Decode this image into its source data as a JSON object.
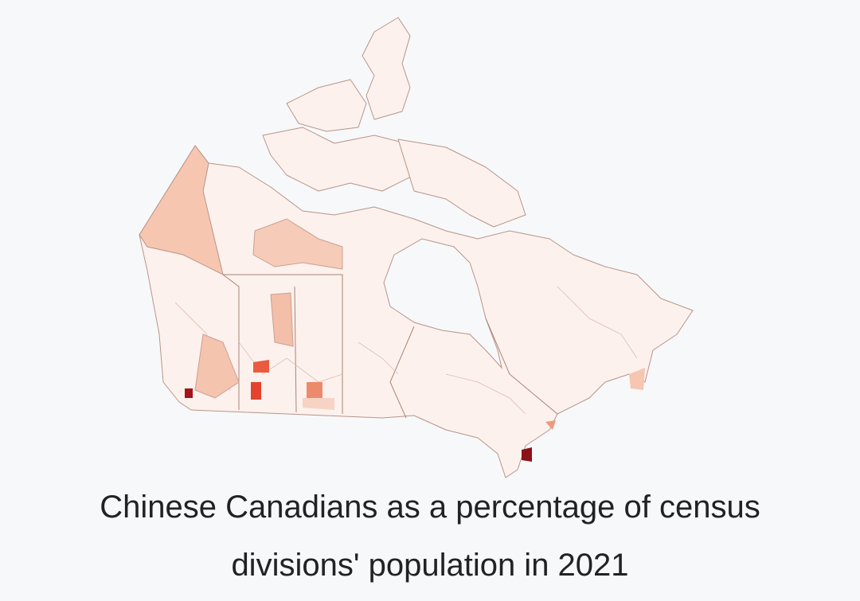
{
  "caption": {
    "lines": [
      "Chinese Canadians as a percentage of census",
      "divisions' population in 2021"
    ]
  }
}
